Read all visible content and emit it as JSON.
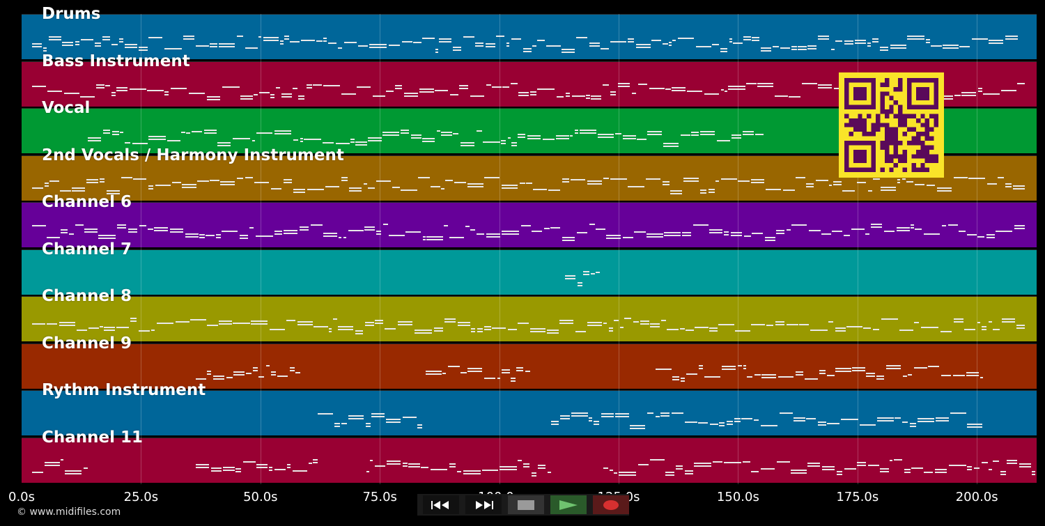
{
  "tracks": [
    {
      "name": "Drums",
      "color": "#006699"
    },
    {
      "name": "Bass Instrument",
      "color": "#990033"
    },
    {
      "name": "Vocal",
      "color": "#009933"
    },
    {
      "name": "2nd Vocals / Harmony Instrument",
      "color": "#996600"
    },
    {
      "name": "Channel 6",
      "color": "#660099"
    },
    {
      "name": "Channel 7",
      "color": "#009999"
    },
    {
      "name": "Channel 8",
      "color": "#999900"
    },
    {
      "name": "Channel 9",
      "color": "#992900"
    },
    {
      "name": "Rythm Instrument",
      "color": "#006699"
    },
    {
      "name": "Channel 11",
      "color": "#990033"
    }
  ],
  "timeline": {
    "ticks": [
      "0.0s",
      "25.0s",
      "50.0s",
      "75.0s",
      "100.0s",
      "125.0s",
      "150.0s",
      "175.0s",
      "200.0s"
    ],
    "max_seconds": 212.5
  },
  "copyright": "© www.midifiles.com",
  "qr_code": {
    "icon": "qr-code-icon",
    "fg": "#5a0a5a",
    "bg": "#f9e429"
  },
  "transport": {
    "rewind": {
      "icon": "rewind-icon",
      "bg": "#111111"
    },
    "fast_forward": {
      "icon": "fast-forward-icon",
      "bg": "#111111"
    },
    "stop": {
      "icon": "stop-icon",
      "bg": "#333333"
    },
    "play": {
      "icon": "play-icon",
      "bg": "#2a5a2a"
    },
    "record": {
      "icon": "record-icon",
      "bg": "#5a1a1a"
    }
  }
}
